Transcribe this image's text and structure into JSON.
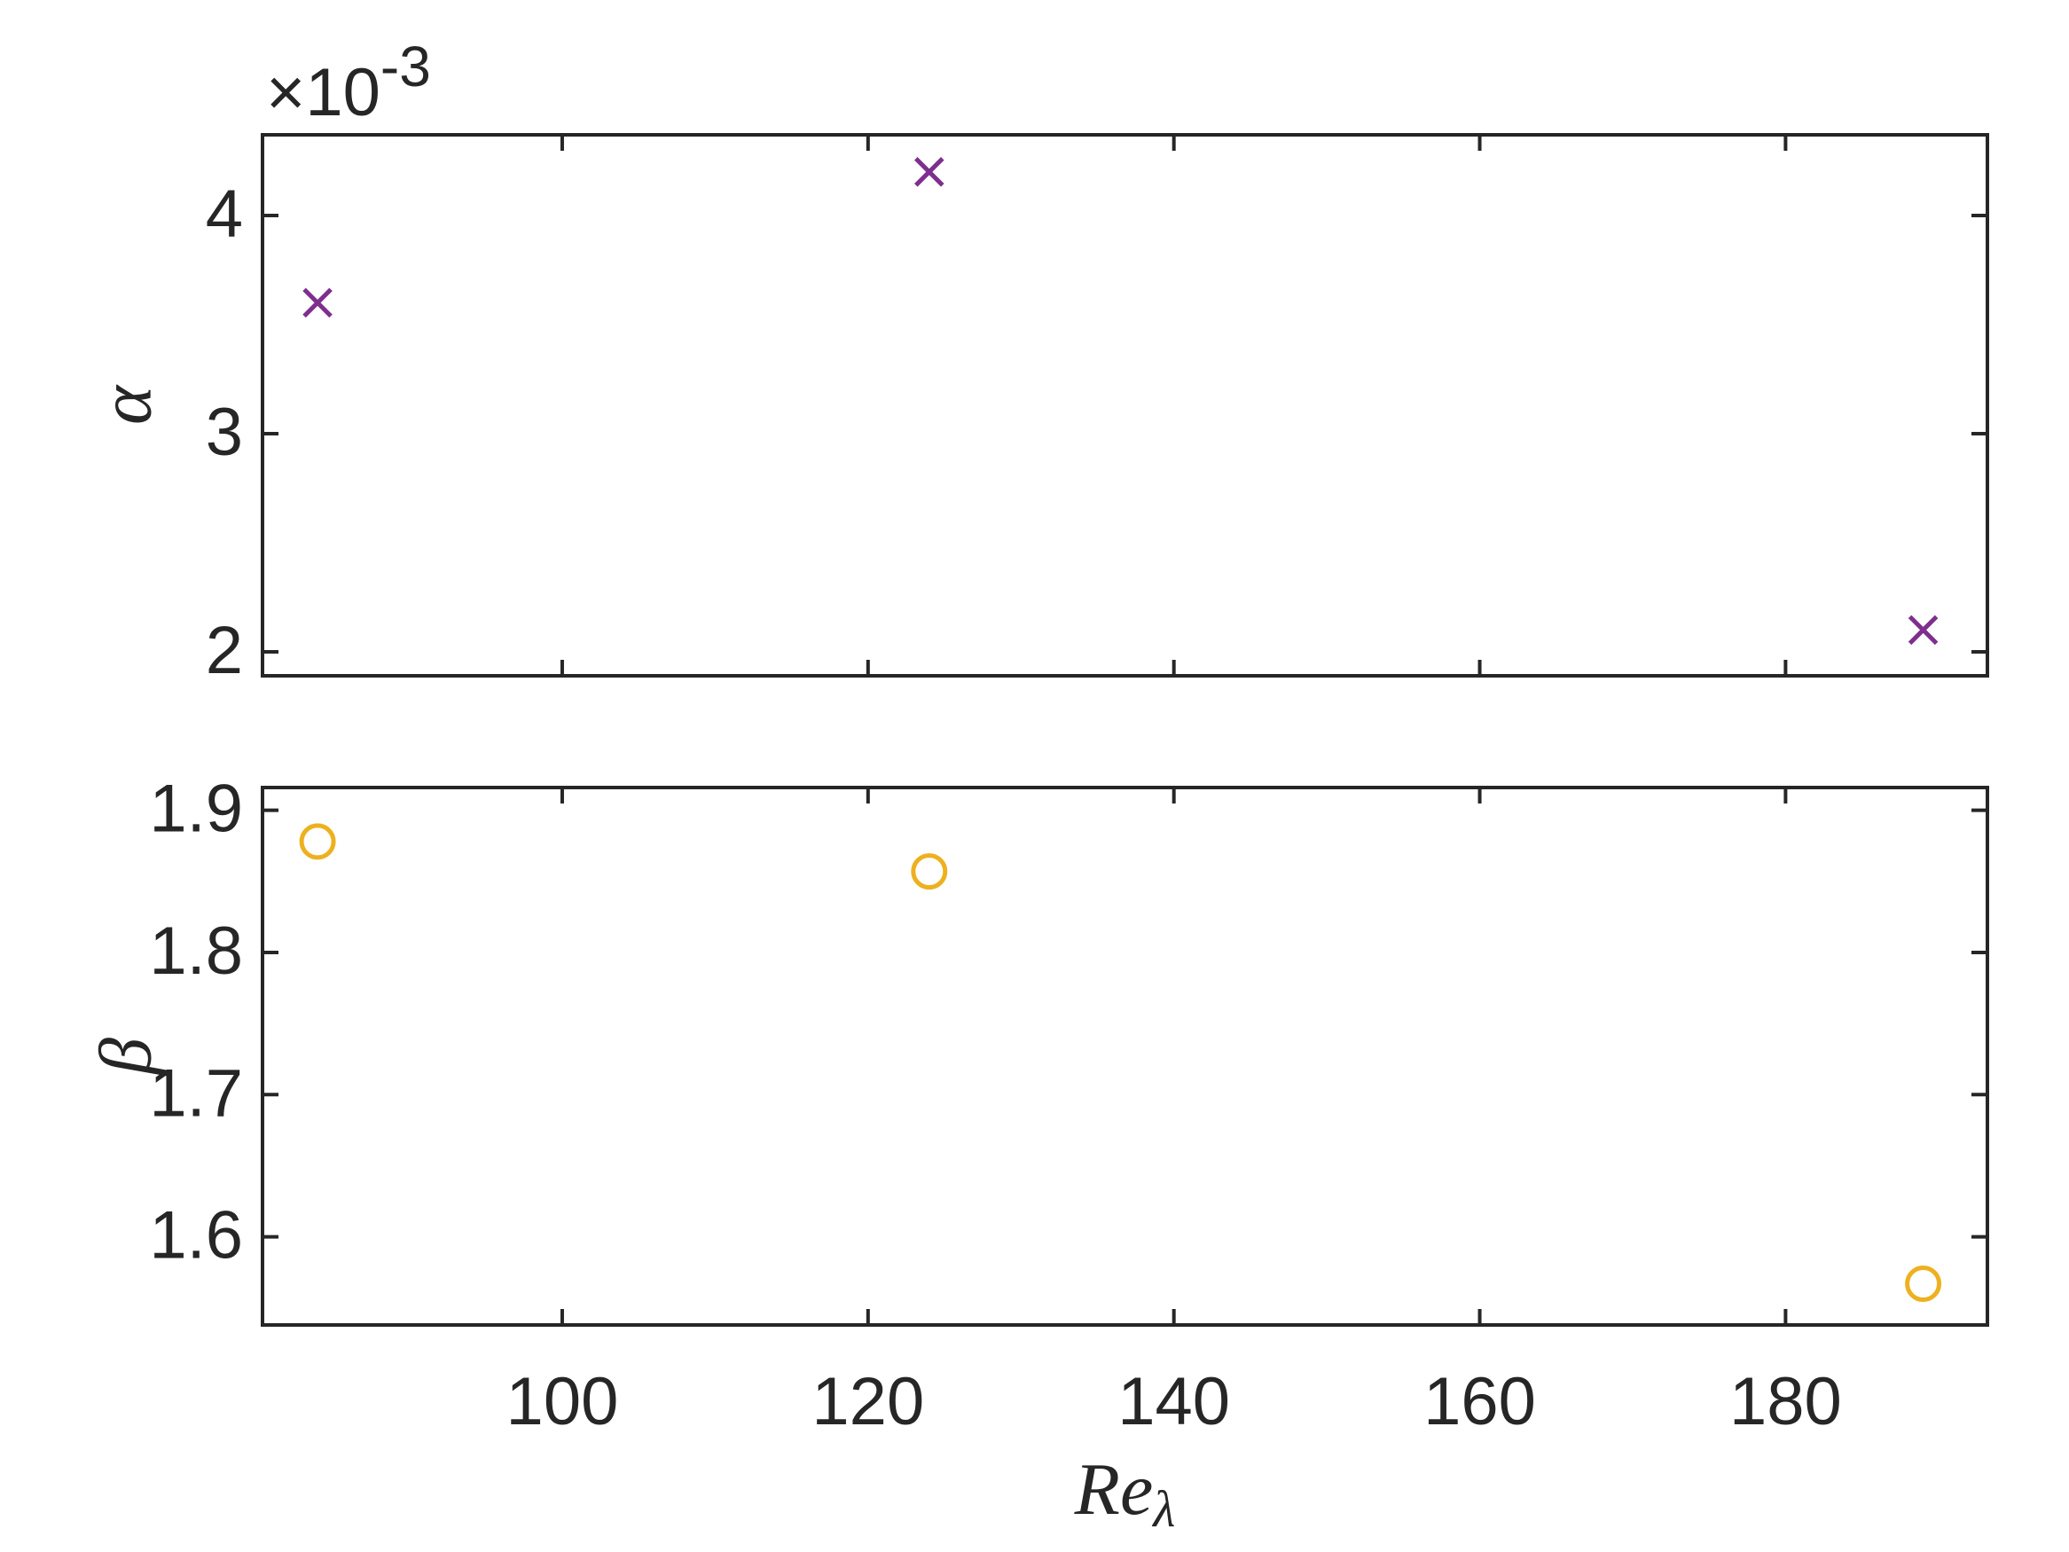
{
  "chart_data": [
    {
      "type": "scatter",
      "x": [
        84,
        124,
        189
      ],
      "values": [
        3.6,
        4.2,
        2.1
      ],
      "color": "#7E2F8E",
      "marker": "x",
      "xlim": [
        80.4,
        193.2
      ],
      "xticks": [
        100,
        120,
        140,
        160,
        180
      ],
      "show_xticklabels": false,
      "ylim": [
        1.89,
        4.37
      ],
      "yticks": [
        2,
        3,
        4
      ],
      "ylabel": "α",
      "y_multiplier": "×10",
      "y_multiplier_exponent": "-3"
    },
    {
      "type": "scatter",
      "x": [
        84,
        124,
        189
      ],
      "values": [
        1.878,
        1.857,
        1.567
      ],
      "color": "#EDB120",
      "marker": "o",
      "xlim": [
        80.4,
        193.2
      ],
      "xticks": [
        100,
        120,
        140,
        160,
        180
      ],
      "show_xticklabels": true,
      "ylim": [
        1.538,
        1.916
      ],
      "yticks": [
        1.6,
        1.7,
        1.8,
        1.9
      ],
      "ylabel": "β",
      "xlabel": "Re",
      "xlabel_subscript": "λ"
    }
  ]
}
